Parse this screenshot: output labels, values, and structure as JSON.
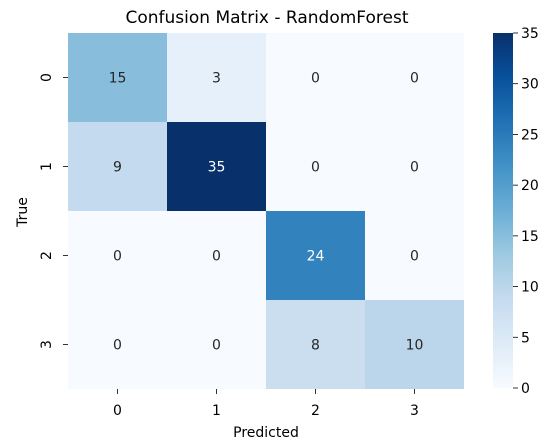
{
  "chart_data": {
    "type": "heatmap",
    "title": "Confusion Matrix - RandomForest",
    "xlabel": "Predicted",
    "ylabel": "True",
    "x_categories": [
      "0",
      "1",
      "2",
      "3"
    ],
    "y_categories": [
      "0",
      "1",
      "2",
      "3"
    ],
    "matrix": [
      [
        15,
        3,
        0,
        0
      ],
      [
        9,
        35,
        0,
        0
      ],
      [
        0,
        0,
        24,
        0
      ],
      [
        0,
        0,
        8,
        10
      ]
    ],
    "colormap": "Blues",
    "colorbar": {
      "range": [
        0,
        35
      ],
      "ticks": [
        "0",
        "5",
        "10",
        "15",
        "20",
        "25",
        "30",
        "35"
      ],
      "low_color": "#f7fbff",
      "high_color": "#08306b"
    },
    "grid": false
  }
}
